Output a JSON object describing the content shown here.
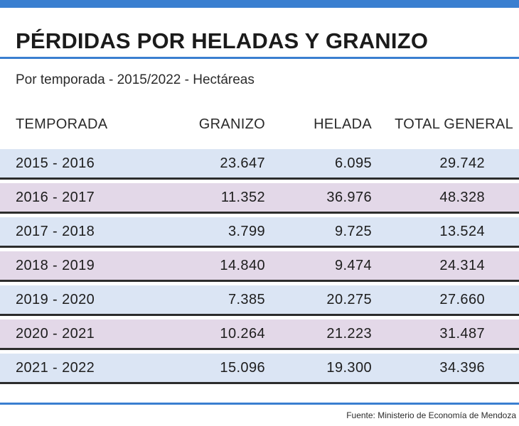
{
  "colors": {
    "accent_blue": "#3a7fd0",
    "row_blue": "#dbe5f4",
    "row_purple": "#e3d8e8"
  },
  "chart_data": {
    "type": "table",
    "title": "PÉRDIDAS POR HELADAS Y GRANIZO",
    "subtitle": "Por temporada - 2015/2022 - Hectáreas",
    "columns": [
      "TEMPORADA",
      "GRANIZO",
      "HELADA",
      "TOTAL GENERAL"
    ],
    "rows": [
      [
        "2015 - 2016",
        "23.647",
        "6.095",
        "29.742"
      ],
      [
        "2016 - 2017",
        "11.352",
        "36.976",
        "48.328"
      ],
      [
        "2017 - 2018",
        "3.799",
        "9.725",
        "13.524"
      ],
      [
        "2018 - 2019",
        "14.840",
        "9.474",
        "24.314"
      ],
      [
        "2019 - 2020",
        "7.385",
        "20.275",
        "27.660"
      ],
      [
        "2020 - 2021",
        "10.264",
        "21.223",
        "31.487"
      ],
      [
        "2021 - 2022",
        "15.096",
        "19.300",
        "34.396"
      ]
    ],
    "source": "Fuente: Ministerio de Economía de Mendoza"
  }
}
